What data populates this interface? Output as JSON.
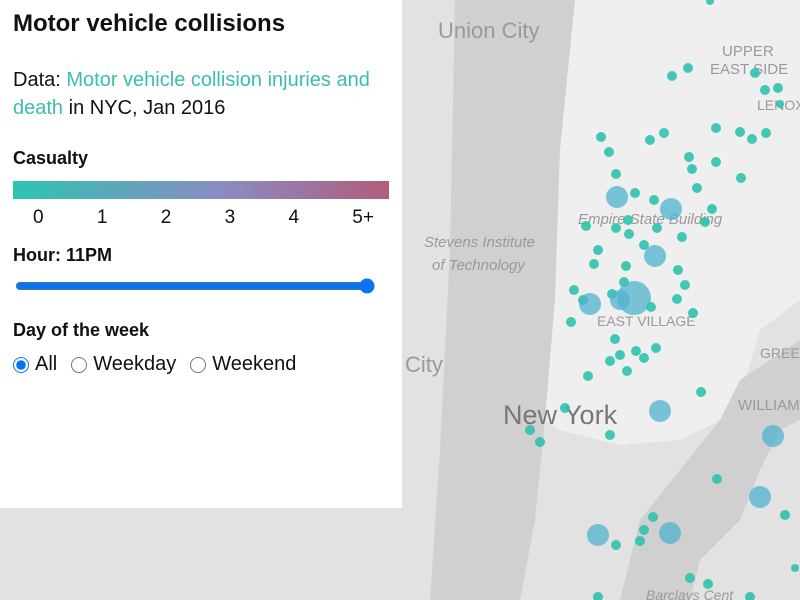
{
  "panel": {
    "title": "Motor vehicle collisions",
    "description": {
      "prefix": "Data:",
      "link": "Motor vehicle collision injuries and death",
      "suffix": "in NYC, Jan 2016"
    },
    "casualty": {
      "heading": "Casualty",
      "ticks": [
        "0",
        "1",
        "2",
        "3",
        "4",
        "5+"
      ]
    },
    "hour": {
      "label": "Hour: 11PM"
    },
    "day": {
      "heading": "Day of the week",
      "options": [
        "All",
        "Weekday",
        "Weekend"
      ]
    }
  },
  "map": {
    "labels": [
      "Union City",
      "UPPER",
      "EAST SIDE",
      "LENOX HI",
      "Empire State Building",
      "Stevens Institute",
      "of Technology",
      "EAST VILLAGE",
      "City",
      "New York",
      "GREE",
      "WILLIAM",
      "Barclays Cent"
    ]
  }
}
